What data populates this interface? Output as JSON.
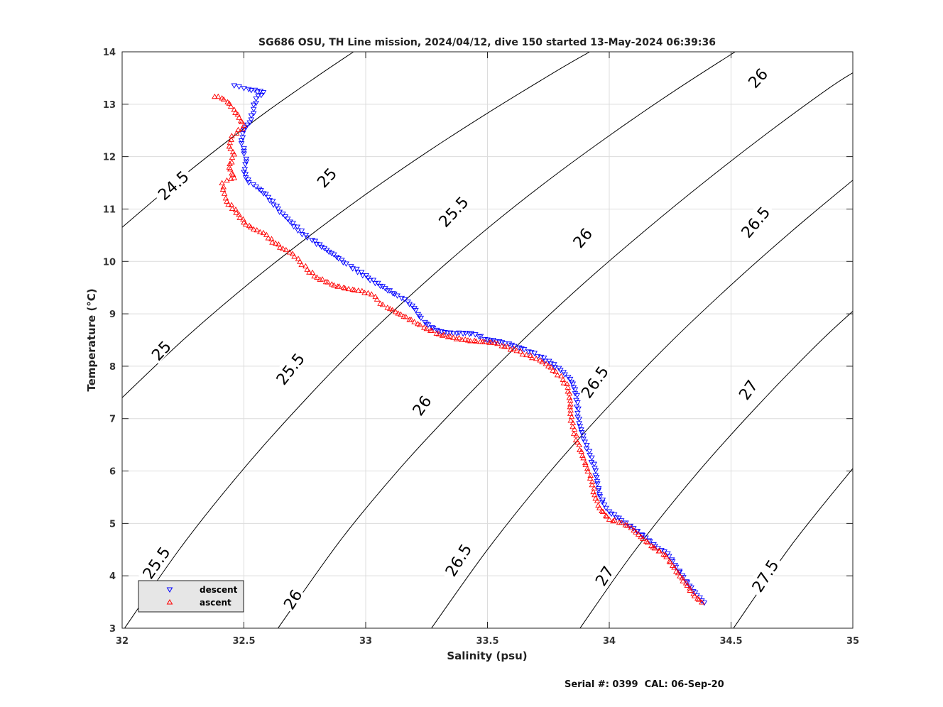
{
  "footer_text": "Serial #: 0399  CAL: 06-Sep-20",
  "chart_data": {
    "type": "scatter",
    "title": "SG686 OSU, TH Line mission, 2024/04/12, dive 150 started 13-May-2024 06:39:36",
    "xlabel": "Salinity (psu)",
    "ylabel": "Temperature (°C)",
    "xlim": [
      32,
      35
    ],
    "ylim": [
      3,
      14
    ],
    "xticks": [
      "32",
      "32.5",
      "33",
      "33.5",
      "34",
      "34.5",
      "35"
    ],
    "yticks": [
      "3",
      "4",
      "5",
      "6",
      "7",
      "8",
      "9",
      "10",
      "11",
      "12",
      "13",
      "14"
    ],
    "grid": true,
    "legend": {
      "placement": "bottom-left",
      "entries": [
        "descent",
        "ascent"
      ]
    },
    "colors": {
      "descent": "#0000ff",
      "ascent": "#ff0000",
      "contour": "#000000"
    },
    "series": [
      {
        "name": "descent",
        "marker": "triangle-down",
        "points": [
          [
            32.46,
            13.35
          ],
          [
            32.48,
            13.33
          ],
          [
            32.5,
            13.3
          ],
          [
            32.52,
            13.28
          ],
          [
            32.58,
            13.22
          ],
          [
            32.55,
            13.1
          ],
          [
            32.54,
            12.9
          ],
          [
            32.53,
            12.7
          ],
          [
            32.5,
            12.5
          ],
          [
            32.49,
            12.3
          ],
          [
            32.5,
            12.1
          ],
          [
            32.51,
            11.9
          ],
          [
            32.5,
            11.7
          ],
          [
            32.52,
            11.5
          ],
          [
            32.55,
            11.42
          ],
          [
            32.57,
            11.35
          ],
          [
            32.6,
            11.22
          ],
          [
            32.64,
            11.0
          ],
          [
            32.66,
            10.9
          ],
          [
            32.67,
            10.85
          ],
          [
            32.69,
            10.75
          ],
          [
            32.76,
            10.45
          ],
          [
            32.78,
            10.4
          ],
          [
            32.86,
            10.15
          ],
          [
            32.92,
            9.95
          ],
          [
            32.94,
            9.9
          ],
          [
            33.01,
            9.68
          ],
          [
            33.08,
            9.48
          ],
          [
            33.13,
            9.34
          ],
          [
            33.16,
            9.27
          ],
          [
            33.18,
            9.18
          ],
          [
            33.2,
            9.1
          ],
          [
            33.22,
            8.95
          ],
          [
            33.25,
            8.8
          ],
          [
            33.3,
            8.66
          ],
          [
            33.36,
            8.62
          ],
          [
            33.41,
            8.63
          ],
          [
            33.45,
            8.6
          ],
          [
            33.5,
            8.5
          ],
          [
            33.56,
            8.45
          ],
          [
            33.6,
            8.4
          ],
          [
            33.64,
            8.33
          ],
          [
            33.68,
            8.26
          ],
          [
            33.72,
            8.17
          ],
          [
            33.76,
            8.05
          ],
          [
            33.8,
            7.92
          ],
          [
            33.84,
            7.75
          ],
          [
            33.86,
            7.55
          ],
          [
            33.87,
            7.3
          ],
          [
            33.87,
            7.1
          ],
          [
            33.88,
            6.85
          ],
          [
            33.9,
            6.55
          ],
          [
            33.92,
            6.3
          ],
          [
            33.94,
            6.05
          ],
          [
            33.95,
            5.8
          ],
          [
            33.96,
            5.55
          ],
          [
            33.98,
            5.35
          ],
          [
            34.0,
            5.22
          ],
          [
            34.05,
            5.05
          ],
          [
            34.1,
            4.9
          ],
          [
            34.15,
            4.72
          ],
          [
            34.2,
            4.52
          ],
          [
            34.24,
            4.42
          ],
          [
            34.27,
            4.2
          ],
          [
            34.3,
            4.0
          ],
          [
            34.33,
            3.8
          ],
          [
            34.36,
            3.62
          ],
          [
            34.38,
            3.52
          ],
          [
            34.39,
            3.48
          ]
        ]
      },
      {
        "name": "ascent",
        "marker": "triangle-up",
        "points": [
          [
            32.38,
            13.15
          ],
          [
            32.41,
            13.12
          ],
          [
            32.44,
            13.02
          ],
          [
            32.46,
            12.9
          ],
          [
            32.48,
            12.75
          ],
          [
            32.5,
            12.6
          ],
          [
            32.47,
            12.45
          ],
          [
            32.45,
            12.4
          ],
          [
            32.44,
            12.2
          ],
          [
            32.46,
            12.05
          ],
          [
            32.45,
            11.9
          ],
          [
            32.44,
            11.8
          ],
          [
            32.46,
            11.6
          ],
          [
            32.43,
            11.55
          ],
          [
            32.41,
            11.5
          ],
          [
            32.42,
            11.3
          ],
          [
            32.43,
            11.15
          ],
          [
            32.48,
            10.9
          ],
          [
            32.5,
            10.75
          ],
          [
            32.54,
            10.62
          ],
          [
            32.58,
            10.55
          ],
          [
            32.6,
            10.45
          ],
          [
            32.63,
            10.35
          ],
          [
            32.66,
            10.25
          ],
          [
            32.7,
            10.15
          ],
          [
            32.73,
            10.0
          ],
          [
            32.76,
            9.85
          ],
          [
            32.8,
            9.7
          ],
          [
            32.87,
            9.55
          ],
          [
            32.93,
            9.48
          ],
          [
            32.97,
            9.45
          ],
          [
            33.01,
            9.4
          ],
          [
            33.04,
            9.33
          ],
          [
            33.06,
            9.2
          ],
          [
            33.1,
            9.1
          ],
          [
            33.2,
            8.85
          ],
          [
            33.25,
            8.72
          ],
          [
            33.3,
            8.62
          ],
          [
            33.36,
            8.55
          ],
          [
            33.42,
            8.5
          ],
          [
            33.48,
            8.47
          ],
          [
            33.53,
            8.45
          ],
          [
            33.57,
            8.38
          ],
          [
            33.62,
            8.3
          ],
          [
            33.66,
            8.22
          ],
          [
            33.7,
            8.15
          ],
          [
            33.74,
            8.05
          ],
          [
            33.78,
            7.9
          ],
          [
            33.81,
            7.75
          ],
          [
            33.83,
            7.6
          ],
          [
            33.84,
            7.35
          ],
          [
            33.84,
            7.1
          ],
          [
            33.85,
            6.85
          ],
          [
            33.87,
            6.55
          ],
          [
            33.89,
            6.3
          ],
          [
            33.91,
            6.05
          ],
          [
            33.93,
            5.8
          ],
          [
            33.94,
            5.55
          ],
          [
            33.96,
            5.3
          ],
          [
            34.0,
            5.08
          ],
          [
            34.05,
            5.02
          ],
          [
            34.09,
            4.92
          ],
          [
            34.13,
            4.75
          ],
          [
            34.18,
            4.55
          ],
          [
            34.23,
            4.4
          ],
          [
            34.26,
            4.2
          ],
          [
            34.29,
            4.0
          ],
          [
            34.32,
            3.82
          ],
          [
            34.35,
            3.62
          ],
          [
            34.38,
            3.5
          ]
        ]
      }
    ],
    "contours": [
      {
        "label": "24.5",
        "points": [
          [
            32,
            10.65
          ],
          [
            32.2,
            11.44
          ],
          [
            32.4,
            12.18
          ],
          [
            32.6,
            12.88
          ],
          [
            32.8,
            13.53
          ],
          [
            32.95,
            14
          ]
        ],
        "label_at": [
          32.21,
          11.45
        ],
        "label_angle": -42
      },
      {
        "label": "25",
        "points": [
          [
            32,
            7.4
          ],
          [
            32.25,
            8.5
          ],
          [
            32.5,
            9.5
          ],
          [
            32.75,
            10.42
          ],
          [
            33,
            11.28
          ],
          [
            33.25,
            12.08
          ],
          [
            33.5,
            12.83
          ],
          [
            33.8,
            13.68
          ],
          [
            33.92,
            14
          ]
        ],
        "label_at": [
          32.16,
          8.3
        ],
        "label_angle": -47
      },
      {
        "label": "25",
        "points": [],
        "label_at": [
          32.84,
          11.6
        ],
        "label_angle": -47
      },
      {
        "label": "25.5",
        "points": [
          [
            32.01,
            3
          ],
          [
            32.25,
            4.6
          ],
          [
            32.5,
            6.05
          ],
          [
            32.75,
            7.35
          ],
          [
            33,
            8.55
          ],
          [
            33.25,
            9.63
          ],
          [
            33.5,
            10.63
          ],
          [
            33.75,
            11.55
          ],
          [
            34,
            12.4
          ],
          [
            34.25,
            13.2
          ],
          [
            34.5,
            13.95
          ],
          [
            34.52,
            14
          ]
        ],
        "label_at": [
          32.14,
          4.25
        ],
        "label_angle": -55
      },
      {
        "label": "25.5",
        "points": [],
        "label_at": [
          32.69,
          7.95
        ],
        "label_angle": -52
      },
      {
        "label": "25.5",
        "points": [],
        "label_at": [
          33.36,
          10.95
        ],
        "label_angle": -47
      },
      {
        "label": "26",
        "points": [
          [
            32.64,
            3
          ],
          [
            32.9,
            4.7
          ],
          [
            33.15,
            6.1
          ],
          [
            33.4,
            7.35
          ],
          [
            33.65,
            8.52
          ],
          [
            33.9,
            9.6
          ],
          [
            34.15,
            10.6
          ],
          [
            34.4,
            11.55
          ],
          [
            34.65,
            12.45
          ],
          [
            34.9,
            13.3
          ],
          [
            35,
            13.6
          ]
        ],
        "label_at": [
          32.7,
          3.55
        ],
        "label_angle": -58
      },
      {
        "label": "26",
        "points": [],
        "label_at": [
          33.23,
          7.25
        ],
        "label_angle": -55
      },
      {
        "label": "26",
        "points": [],
        "label_at": [
          33.89,
          10.45
        ],
        "label_angle": -50
      },
      {
        "label": "26",
        "points": [],
        "label_at": [
          34.61,
          13.5
        ],
        "label_angle": -47
      },
      {
        "label": "26.5",
        "points": [
          [
            33.27,
            3
          ],
          [
            33.5,
            4.5
          ],
          [
            33.75,
            5.95
          ],
          [
            34,
            7.25
          ],
          [
            34.25,
            8.45
          ],
          [
            34.5,
            9.55
          ],
          [
            34.75,
            10.58
          ],
          [
            35,
            11.55
          ]
        ],
        "label_at": [
          33.38,
          4.3
        ],
        "label_angle": -58
      },
      {
        "label": "26.5",
        "points": [],
        "label_at": [
          33.94,
          7.7
        ],
        "label_angle": -55
      },
      {
        "label": "26.5",
        "points": [],
        "label_at": [
          34.6,
          10.75
        ],
        "label_angle": -50
      },
      {
        "label": "27",
        "points": [
          [
            33.88,
            3
          ],
          [
            34.1,
            4.45
          ],
          [
            34.35,
            5.9
          ],
          [
            34.6,
            7.2
          ],
          [
            34.85,
            8.4
          ],
          [
            35,
            9.05
          ]
        ],
        "label_at": [
          33.98,
          4.0
        ],
        "label_angle": -58
      },
      {
        "label": "27",
        "points": [],
        "label_at": [
          34.57,
          7.55
        ],
        "label_angle": -55
      },
      {
        "label": "27.5",
        "points": [
          [
            34.51,
            3
          ],
          [
            34.75,
            4.6
          ],
          [
            35,
            6.05
          ]
        ],
        "label_at": [
          34.64,
          4.0
        ],
        "label_angle": -57
      }
    ]
  }
}
